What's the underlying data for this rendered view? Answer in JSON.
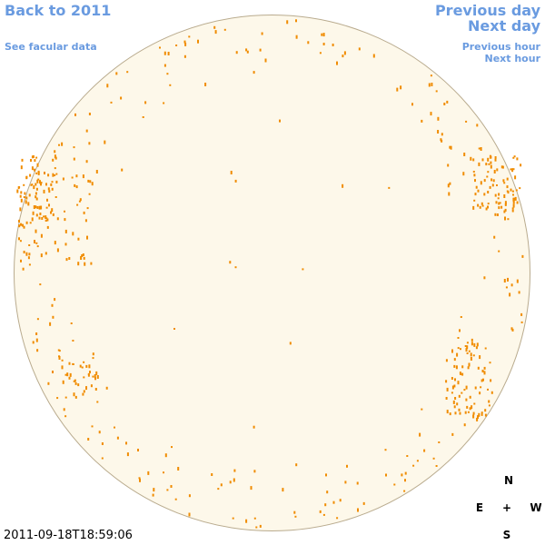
{
  "nav": {
    "back": "Back to 2011",
    "facular": "See facular data",
    "previous_day": "Previous day",
    "next_day": "Next day",
    "previous_hour": "Previous hour",
    "next_hour": "Next hour"
  },
  "timestamp": "2011-09-18T18:59:06",
  "compass": {
    "north": "N",
    "east": "E",
    "center": "+",
    "west": "W",
    "south": "S"
  }
}
